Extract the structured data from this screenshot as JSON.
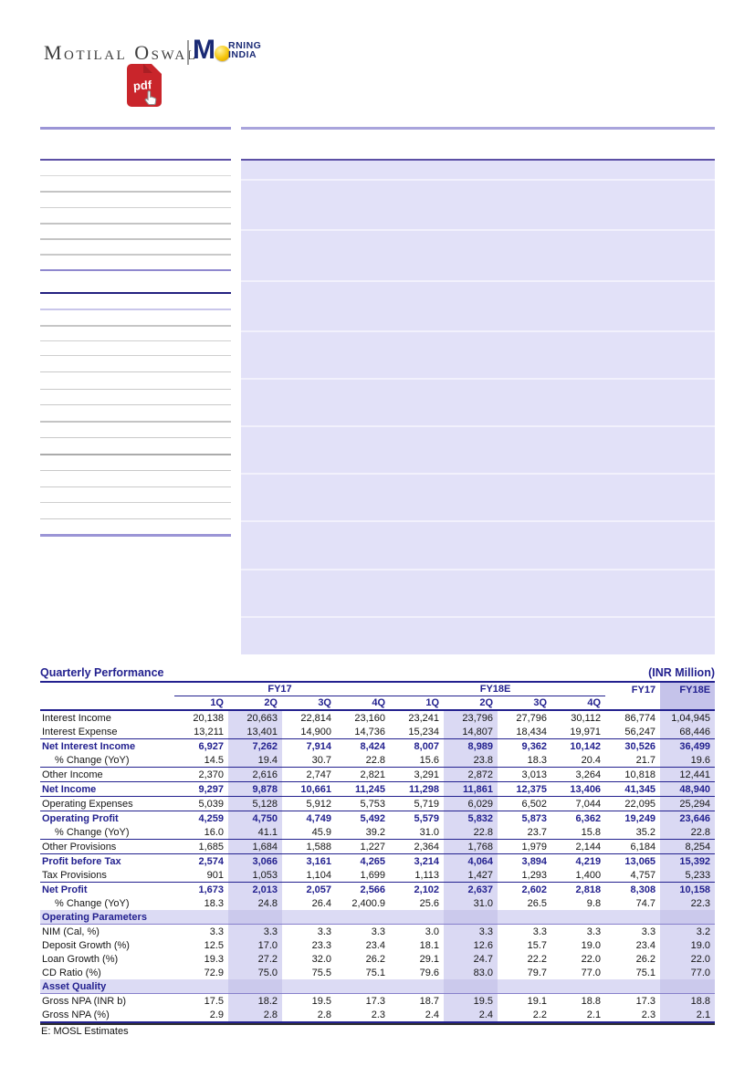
{
  "brand": {
    "wordmark": "Motilal Oswal",
    "sub_logo": {
      "m": "M",
      "rning": "RNING",
      "india": "INDIA"
    },
    "pdf_badge": "pdf"
  },
  "table": {
    "title": "Quarterly Performance",
    "unit_label": "(INR Million)",
    "group_headers": [
      "FY17",
      "FY18E"
    ],
    "annual_headers": [
      "FY17",
      "FY18E"
    ],
    "quarter_labels": [
      "1Q",
      "2Q",
      "3Q",
      "4Q",
      "1Q",
      "2Q",
      "3Q",
      "4Q"
    ],
    "footnote": "E: MOSL Estimates",
    "rows": [
      {
        "label": "Interest Income",
        "style": "normal",
        "rule_above": false,
        "values": [
          "20,138",
          "20,663",
          "22,814",
          "23,160",
          "23,241",
          "23,796",
          "27,796",
          "30,112",
          "86,774",
          "1,04,945"
        ]
      },
      {
        "label": "Interest Expense",
        "style": "normal",
        "rule_above": false,
        "values": [
          "13,211",
          "13,401",
          "14,900",
          "14,736",
          "15,234",
          "14,807",
          "18,434",
          "19,971",
          "56,247",
          "68,446"
        ]
      },
      {
        "label": "Net Interest Income",
        "style": "strong",
        "rule_above": true,
        "values": [
          "6,927",
          "7,262",
          "7,914",
          "8,424",
          "8,007",
          "8,989",
          "9,362",
          "10,142",
          "30,526",
          "36,499"
        ]
      },
      {
        "label": "% Change (YoY)",
        "style": "pct",
        "rule_above": false,
        "values": [
          "14.5",
          "19.4",
          "30.7",
          "22.8",
          "15.6",
          "23.8",
          "18.3",
          "20.4",
          "21.7",
          "19.6"
        ]
      },
      {
        "label": "Other Income",
        "style": "normal",
        "rule_above": true,
        "values": [
          "2,370",
          "2,616",
          "2,747",
          "2,821",
          "3,291",
          "2,872",
          "3,013",
          "3,264",
          "10,818",
          "12,441"
        ]
      },
      {
        "label": "Net Income",
        "style": "strong",
        "rule_above": true,
        "values": [
          "9,297",
          "9,878",
          "10,661",
          "11,245",
          "11,298",
          "11,861",
          "12,375",
          "13,406",
          "41,345",
          "48,940"
        ]
      },
      {
        "label": "Operating Expenses",
        "style": "normal",
        "rule_above": true,
        "values": [
          "5,039",
          "5,128",
          "5,912",
          "5,753",
          "5,719",
          "6,029",
          "6,502",
          "7,044",
          "22,095",
          "25,294"
        ]
      },
      {
        "label": "Operating Profit",
        "style": "strong",
        "rule_above": true,
        "values": [
          "4,259",
          "4,750",
          "4,749",
          "5,492",
          "5,579",
          "5,832",
          "5,873",
          "6,362",
          "19,249",
          "23,646"
        ]
      },
      {
        "label": "% Change (YoY)",
        "style": "pct",
        "rule_above": false,
        "values": [
          "16.0",
          "41.1",
          "45.9",
          "39.2",
          "31.0",
          "22.8",
          "23.7",
          "15.8",
          "35.2",
          "22.8"
        ]
      },
      {
        "label": "Other Provisions",
        "style": "normal",
        "rule_above": true,
        "values": [
          "1,685",
          "1,684",
          "1,588",
          "1,227",
          "2,364",
          "1,768",
          "1,979",
          "2,144",
          "6,184",
          "8,254"
        ]
      },
      {
        "label": "Profit before Tax",
        "style": "strong",
        "rule_above": true,
        "values": [
          "2,574",
          "3,066",
          "3,161",
          "4,265",
          "3,214",
          "4,064",
          "3,894",
          "4,219",
          "13,065",
          "15,392"
        ]
      },
      {
        "label": "Tax Provisions",
        "style": "normal",
        "rule_above": false,
        "values": [
          "901",
          "1,053",
          "1,104",
          "1,699",
          "1,113",
          "1,427",
          "1,293",
          "1,400",
          "4,757",
          "5,233"
        ]
      },
      {
        "label": "Net Profit",
        "style": "strong",
        "rule_above": true,
        "values": [
          "1,673",
          "2,013",
          "2,057",
          "2,566",
          "2,102",
          "2,637",
          "2,602",
          "2,818",
          "8,308",
          "10,158"
        ]
      },
      {
        "label": "% Change (YoY)",
        "style": "pct",
        "rule_above": false,
        "values": [
          "18.3",
          "24.8",
          "26.4",
          "2,400.9",
          "25.6",
          "31.0",
          "26.5",
          "9.8",
          "74.7",
          "22.3"
        ]
      },
      {
        "label": "Operating Parameters",
        "style": "section",
        "rule_above": false,
        "values": []
      },
      {
        "label": "NIM (Cal, %)",
        "style": "normal",
        "rule_above": false,
        "values": [
          "3.3",
          "3.3",
          "3.3",
          "3.3",
          "3.0",
          "3.3",
          "3.3",
          "3.3",
          "3.3",
          "3.2"
        ]
      },
      {
        "label": "Deposit Growth (%)",
        "style": "normal",
        "rule_above": false,
        "values": [
          "12.5",
          "17.0",
          "23.3",
          "23.4",
          "18.1",
          "12.6",
          "15.7",
          "19.0",
          "23.4",
          "19.0"
        ]
      },
      {
        "label": "Loan Growth (%)",
        "style": "normal",
        "rule_above": false,
        "values": [
          "19.3",
          "27.2",
          "32.0",
          "26.2",
          "29.1",
          "24.7",
          "22.2",
          "22.0",
          "26.2",
          "22.0"
        ]
      },
      {
        "label": "CD Ratio (%)",
        "style": "normal",
        "rule_above": false,
        "values": [
          "72.9",
          "75.0",
          "75.5",
          "75.1",
          "79.6",
          "83.0",
          "79.7",
          "77.0",
          "75.1",
          "77.0"
        ]
      },
      {
        "label": "Asset Quality",
        "style": "section",
        "rule_above": false,
        "values": []
      },
      {
        "label": "Gross NPA (INR b)",
        "style": "normal",
        "rule_above": false,
        "values": [
          "17.5",
          "18.2",
          "19.5",
          "17.3",
          "18.7",
          "19.5",
          "19.1",
          "18.8",
          "17.3",
          "18.8"
        ]
      },
      {
        "label": "Gross NPA (%)",
        "style": "normal",
        "rule_above": false,
        "values": [
          "2.9",
          "2.8",
          "2.8",
          "2.3",
          "2.4",
          "2.4",
          "2.2",
          "2.1",
          "2.3",
          "2.1"
        ]
      }
    ]
  },
  "colors": {
    "navy": "#23218F",
    "shade": "#DAD9F3",
    "shade_dark": "#C5C3EA",
    "band": "#DCDBF4",
    "content_block": "#E2E1F8",
    "pdf_red": "#C9252B",
    "sun_yellow": "#F5C50A"
  }
}
